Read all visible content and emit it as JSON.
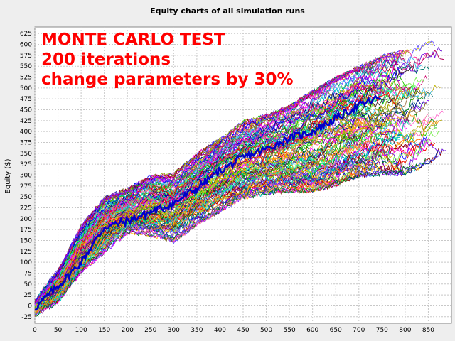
{
  "title": "Equity charts of all simulation runs",
  "overlay": {
    "line1": "MONTE CARLO TEST",
    "line2": "200 iterations",
    "line3": "change parameters by 30%"
  },
  "colors": {
    "background": "#eeeeee",
    "plot_background": "#ffffff",
    "grid": "#c8c8c8",
    "overlay_text": "#ff0000",
    "mean_line": "#0000cc"
  },
  "chart_data": {
    "type": "line",
    "title": "Equity charts of all simulation runs",
    "xlabel": "",
    "ylabel": "Equity ($)",
    "xlim": [
      0,
      900
    ],
    "ylim": [
      -40,
      640
    ],
    "x_ticks": [
      0,
      50,
      100,
      150,
      200,
      250,
      300,
      350,
      400,
      450,
      500,
      550,
      600,
      650,
      700,
      750,
      800,
      850
    ],
    "y_ticks": [
      -25,
      0,
      25,
      50,
      75,
      100,
      125,
      150,
      175,
      200,
      225,
      250,
      275,
      300,
      325,
      350,
      375,
      400,
      425,
      450,
      475,
      500,
      525,
      550,
      575,
      600,
      625
    ],
    "grid": true,
    "legend": "none",
    "iterations": 200,
    "envelope": {
      "x": [
        0,
        50,
        100,
        150,
        200,
        250,
        300,
        350,
        400,
        450,
        500,
        550,
        600,
        650,
        700,
        750,
        800,
        850,
        890
      ],
      "upper": [
        10,
        80,
        180,
        245,
        265,
        295,
        300,
        345,
        380,
        420,
        435,
        455,
        490,
        520,
        545,
        570,
        585,
        605,
        600
      ],
      "lower": [
        -20,
        10,
        80,
        125,
        170,
        165,
        150,
        190,
        220,
        250,
        260,
        265,
        265,
        280,
        300,
        305,
        305,
        330,
        360
      ]
    },
    "series": [
      {
        "values_label": "mean",
        "x": [
          0,
          50,
          100,
          150,
          200,
          250,
          300,
          350,
          400,
          450,
          500,
          550,
          600,
          650,
          700,
          750
        ],
        "y": [
          -5,
          45,
          100,
          180,
          195,
          215,
          235,
          270,
          310,
          340,
          360,
          385,
          400,
          430,
          460,
          480
        ]
      }
    ]
  }
}
